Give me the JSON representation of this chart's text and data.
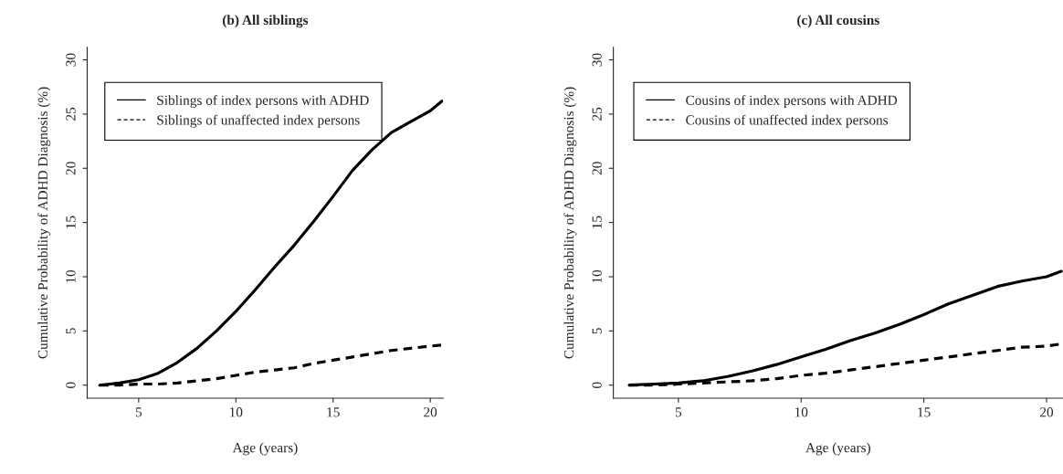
{
  "chart_data": [
    {
      "type": "line",
      "title": "(b) All siblings",
      "xlabel": "Age (years)",
      "ylabel": "Cumulative Probability of ADHD Diagnosis (%)",
      "x": [
        3,
        4,
        5,
        6,
        7,
        8,
        9,
        10,
        11,
        12,
        13,
        14,
        15,
        16,
        17,
        18,
        19,
        20,
        20.6
      ],
      "xlim": [
        2.35,
        20.67
      ],
      "ylim": [
        -1.2,
        31.15
      ],
      "xticks": [
        5,
        10,
        15,
        20
      ],
      "yticks": [
        0,
        5,
        10,
        15,
        20,
        25,
        30
      ],
      "grid": false,
      "legend": "top left",
      "marker": "none",
      "series": [
        {
          "name": "Siblings of index persons with ADHD",
          "color": "#000000",
          "line_style": "solid",
          "values": [
            0,
            0.2,
            0.5,
            1.1,
            2.1,
            3.4,
            5.0,
            6.8,
            8.8,
            10.9,
            12.9,
            15.1,
            17.4,
            19.8,
            21.7,
            23.3,
            24.3,
            25.3,
            26.2
          ]
        },
        {
          "name": "Siblings of unaffected index persons",
          "color": "#000000",
          "line_style": "dashed",
          "values": [
            0,
            0,
            0.1,
            0.1,
            0.2,
            0.4,
            0.6,
            0.9,
            1.2,
            1.4,
            1.6,
            2.0,
            2.3,
            2.6,
            2.9,
            3.2,
            3.4,
            3.6,
            3.7
          ]
        }
      ]
    },
    {
      "type": "line",
      "title": "(c) All cousins",
      "xlabel": "Age (years)",
      "ylabel": "Cumulative Probability of ADHD Diagnosis (%)",
      "x": [
        3,
        4,
        5,
        6,
        7,
        8,
        9,
        10,
        11,
        12,
        13,
        14,
        15,
        16,
        17,
        18,
        19,
        20,
        20.6
      ],
      "xlim": [
        2.35,
        20.67
      ],
      "ylim": [
        -1.2,
        31.15
      ],
      "xticks": [
        5,
        10,
        15,
        20
      ],
      "yticks": [
        0,
        5,
        10,
        15,
        20,
        25,
        30
      ],
      "grid": false,
      "legend": "top left",
      "marker": "none",
      "series": [
        {
          "name": "Cousins of index persons with ADHD",
          "color": "#000000",
          "line_style": "solid",
          "values": [
            0,
            0.1,
            0.2,
            0.4,
            0.8,
            1.3,
            1.9,
            2.6,
            3.3,
            4.1,
            4.8,
            5.6,
            6.5,
            7.5,
            8.3,
            9.1,
            9.6,
            10.0,
            10.5
          ]
        },
        {
          "name": "Cousins of unaffected index persons",
          "color": "#000000",
          "line_style": "dashed",
          "values": [
            0,
            0,
            0.1,
            0.2,
            0.3,
            0.4,
            0.6,
            0.9,
            1.1,
            1.4,
            1.7,
            2.0,
            2.3,
            2.6,
            2.9,
            3.2,
            3.5,
            3.6,
            3.8
          ]
        }
      ]
    }
  ]
}
